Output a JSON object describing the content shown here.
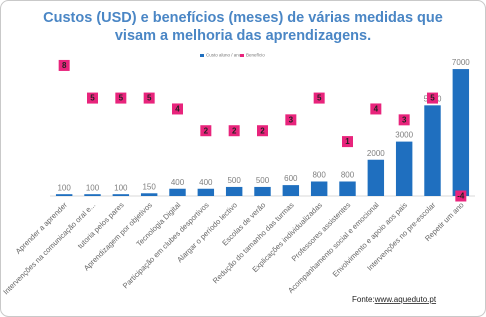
{
  "chart_data": {
    "type": "bar",
    "title_lines": [
      "Custos (USD) e benefícios (meses) de várias medidas que",
      "visam a melhoria das aprendizagens."
    ],
    "categories": [
      "Aprender a aprender",
      "Intervenções na comunicação oral e...",
      "tutoria pelos pares",
      "Aprendizagem por objetivos",
      "Tecnologia Digital",
      "Participação em clubes desportivos",
      "Alargar o período lectivo",
      "Escolas de verão",
      "Redução do tamanho das turmas",
      "Explicações individualizadas",
      "Professores assistentes",
      "Acompanhamento social e emocional",
      "Envolvimento e apoio aos pais",
      "Intervenções no pre-escolar",
      "Repetir um ano"
    ],
    "series": [
      {
        "name": "Custo aluno / ano",
        "color": "#1f6fbf",
        "axis": "y",
        "values": [
          100,
          100,
          100,
          150,
          400,
          400,
          500,
          500,
          600,
          800,
          800,
          2000,
          3000,
          5000,
          7000
        ]
      },
      {
        "name": "Benefício",
        "color": "#e8247c",
        "axis": "y2",
        "values": [
          8,
          5,
          5,
          5,
          4,
          2,
          2,
          2,
          3,
          5,
          1,
          4,
          3,
          5,
          -4
        ]
      }
    ],
    "ylim": [
      0,
      7500
    ],
    "y2lim": [
      -4,
      8.5
    ],
    "legend": "top",
    "source_prefix": "Fonte:",
    "source_url": "www.aqueduto.pt"
  }
}
